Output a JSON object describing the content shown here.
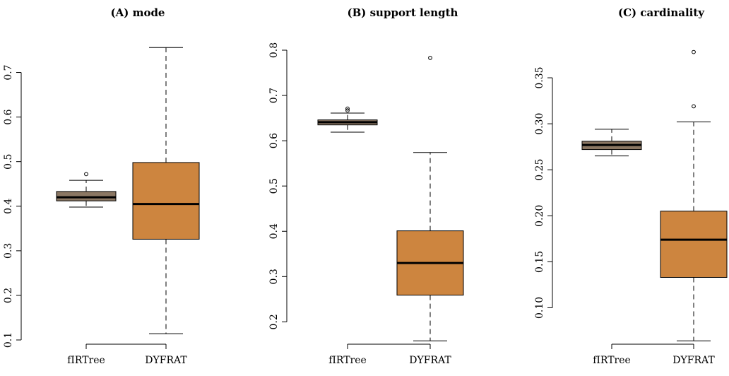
{
  "chart_data": [
    {
      "type": "boxplot",
      "title": "(A) mode",
      "categories": [
        "fIRTree",
        "DYFRAT"
      ],
      "ylim": [
        0.1,
        0.75
      ],
      "yticks": [
        "0.1",
        "0.2",
        "0.3",
        "0.4",
        "0.5",
        "0.6",
        "0.7"
      ],
      "grid": false,
      "boxes": [
        {
          "category": "fIRTree",
          "whisker_low": 0.398,
          "q1": 0.412,
          "median": 0.42,
          "q3": 0.433,
          "whisker_high": 0.458,
          "outliers": [
            0.472
          ],
          "color": "#8b7763"
        },
        {
          "category": "DYFRAT",
          "whisker_low": 0.114,
          "q1": 0.326,
          "median": 0.405,
          "q3": 0.498,
          "whisker_high": 0.756,
          "outliers": [],
          "color": "#cd853f"
        }
      ]
    },
    {
      "type": "boxplot",
      "title": "(B) support length",
      "categories": [
        "fIRTree",
        "DYFRAT"
      ],
      "ylim": [
        0.16,
        0.8
      ],
      "yticks": [
        "0.2",
        "0.3",
        "0.4",
        "0.5",
        "0.6",
        "0.7",
        "0.8"
      ],
      "grid": false,
      "boxes": [
        {
          "category": "fIRTree",
          "whisker_low": 0.619,
          "q1": 0.635,
          "median": 0.641,
          "q3": 0.646,
          "whisker_high": 0.661,
          "outliers": [
            0.667,
            0.671
          ],
          "color": "#8b7763"
        },
        {
          "category": "DYFRAT",
          "whisker_low": 0.158,
          "q1": 0.259,
          "median": 0.33,
          "q3": 0.401,
          "whisker_high": 0.574,
          "outliers": [
            0.783
          ],
          "color": "#cd853f"
        }
      ]
    },
    {
      "type": "boxplot",
      "title": "(C) cardinality",
      "categories": [
        "fIRTree",
        "DYFRAT"
      ],
      "ylim": [
        0.065,
        0.38
      ],
      "yticks": [
        "0.10",
        "0.15",
        "0.20",
        "0.25",
        "0.30",
        "0.35"
      ],
      "grid": false,
      "boxes": [
        {
          "category": "fIRTree",
          "whisker_low": 0.265,
          "q1": 0.272,
          "median": 0.277,
          "q3": 0.281,
          "whisker_high": 0.294,
          "outliers": [],
          "color": "#8b7763"
        },
        {
          "category": "DYFRAT",
          "whisker_low": 0.064,
          "q1": 0.133,
          "median": 0.174,
          "q3": 0.205,
          "whisker_high": 0.302,
          "outliers": [
            0.319,
            0.378
          ],
          "color": "#cd853f"
        }
      ]
    }
  ]
}
